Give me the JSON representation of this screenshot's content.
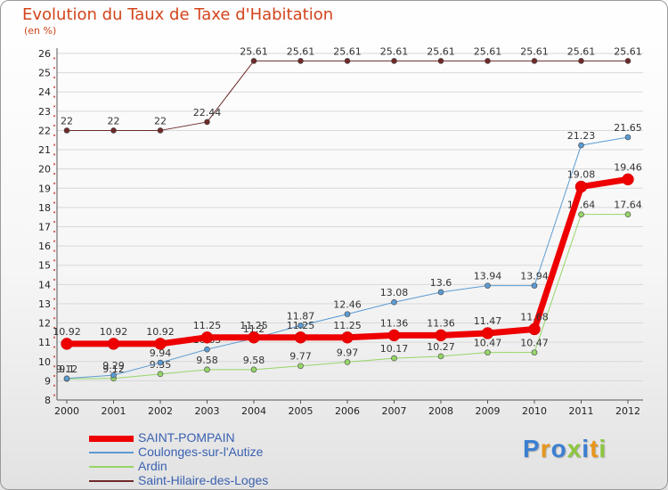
{
  "title": "Evolution du Taux de Taxe d'Habitation",
  "unit": "(en %)",
  "logo": [
    "P",
    "r",
    "o",
    "x",
    "i",
    "t",
    "i"
  ],
  "logo_colors": [
    "#3b7fd1",
    "#e8951a",
    "#3b7fd1",
    "#8cc63f",
    "#3b7fd1",
    "#e8951a",
    "#8cc63f"
  ],
  "chart_data": {
    "type": "line",
    "title": "Evolution du Taux de Taxe d'Habitation",
    "ylabel": "(en %)",
    "xlabel": "",
    "ylim": [
      8,
      26
    ],
    "yticks": [
      "8",
      "9",
      "10",
      "11",
      "12",
      "13",
      "14",
      "15",
      "16",
      "17",
      "18",
      "19",
      "20",
      "21",
      "22",
      "23",
      "24",
      "25",
      "26"
    ],
    "categories": [
      "2000",
      "2001",
      "2002",
      "2003",
      "2004",
      "2005",
      "2006",
      "2007",
      "2008",
      "2009",
      "2010",
      "2011",
      "2012"
    ],
    "series": [
      {
        "name": "Saint-Hilaire-des-Loges",
        "color": "#6e2a2a",
        "width": 1,
        "values": [
          22,
          22,
          22,
          22.44,
          25.61,
          25.61,
          25.61,
          25.61,
          25.61,
          25.61,
          25.61,
          25.61,
          25.61
        ],
        "labels": [
          "22",
          "22",
          "22",
          "22.44",
          "25.61",
          "25.61",
          "25.61",
          "25.61",
          "25.61",
          "25.61",
          "25.61",
          "25.61",
          "25.61"
        ]
      },
      {
        "name": "Ardin",
        "color": "#96d568",
        "width": 1,
        "values": [
          9.1,
          9.12,
          9.35,
          9.58,
          9.58,
          9.77,
          9.97,
          10.17,
          10.27,
          10.47,
          10.47,
          17.64,
          17.64
        ],
        "labels": [
          "9.1",
          "9.12",
          "9.35",
          "9.58",
          "9.58",
          "9.77",
          "9.97",
          "10.17",
          "10.27",
          "10.47",
          "10.47",
          "17.64",
          "17.64"
        ]
      },
      {
        "name": "Coulonges-sur-l'Autize",
        "color": "#5c9bd1",
        "width": 1,
        "values": [
          9.12,
          9.29,
          9.94,
          10.63,
          11.2,
          11.87,
          12.46,
          13.08,
          13.6,
          13.94,
          13.94,
          21.23,
          21.65
        ],
        "labels": [
          "9.12",
          "9.29",
          "9.94",
          "10.63",
          "11.2",
          "11.87",
          "12.46",
          "13.08",
          "13.6",
          "13.94",
          "13.94",
          "21.23",
          "21.65"
        ]
      },
      {
        "name": "SAINT-POMPAIN",
        "color": "#ee0000",
        "width": 7,
        "values": [
          10.92,
          10.92,
          10.92,
          11.25,
          11.25,
          11.25,
          11.25,
          11.36,
          11.36,
          11.47,
          11.68,
          19.08,
          19.46
        ],
        "labels": [
          "10.92",
          "10.92",
          "10.92",
          "11.25",
          "11.25",
          "11.25",
          "11.25",
          "11.36",
          "11.36",
          "11.47",
          "11.68",
          "19.08",
          "19.46"
        ]
      }
    ],
    "legend": [
      "SAINT-POMPAIN",
      "Coulonges-sur-l'Autize",
      "Ardin",
      "Saint-Hilaire-des-Loges"
    ]
  }
}
